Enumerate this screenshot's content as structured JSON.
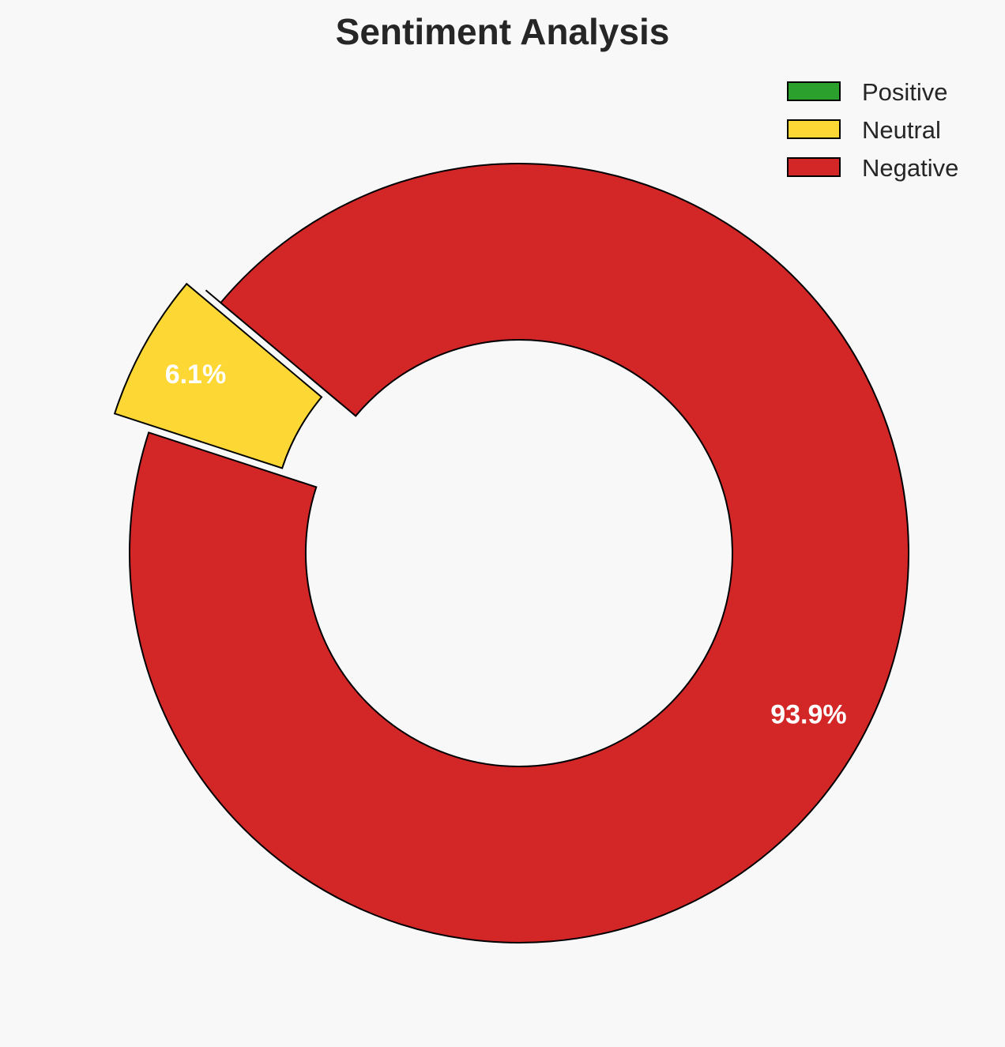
{
  "chart_data": {
    "type": "pie",
    "variant": "donut",
    "title": "Sentiment Analysis",
    "categories": [
      "Positive",
      "Neutral",
      "Negative"
    ],
    "values": [
      0.0,
      6.1,
      93.9
    ],
    "labels": [
      "",
      "6.1%",
      "93.9%"
    ],
    "colors": [
      "#2ca02c",
      "#fdd835",
      "#d32727"
    ],
    "edge_color": "#000000",
    "start_angle": 140,
    "explode": [
      0.05,
      0.1,
      0
    ],
    "legend": {
      "placement": "top-right",
      "entries": [
        "Positive",
        "Neutral",
        "Negative"
      ]
    }
  }
}
